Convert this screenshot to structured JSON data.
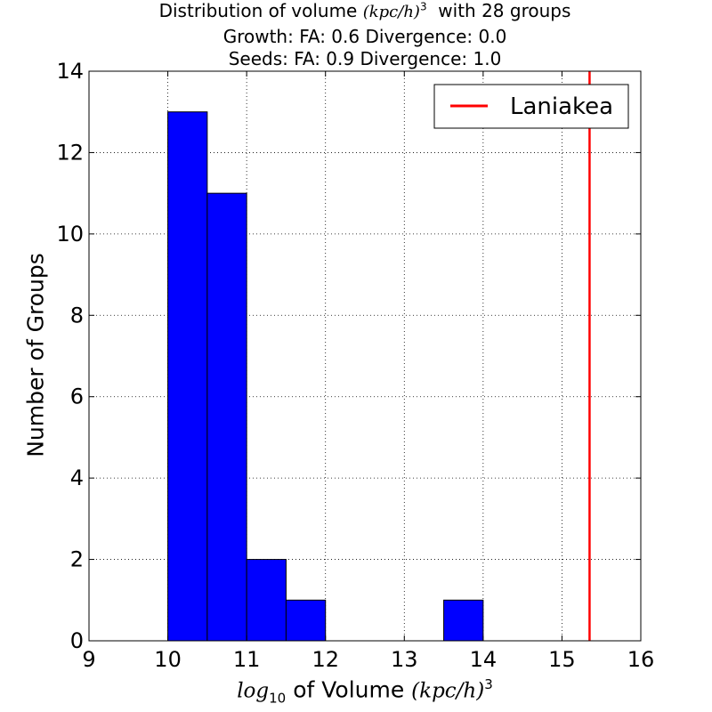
{
  "chart_data": {
    "type": "bar",
    "title": {
      "line1_prefix": "Distribution of volume",
      "line1_math": "(kpc/h)",
      "line1_exp": "3",
      "line1_suffix": "with 28 groups",
      "line2": "Growth: FA: 0.6 Divergence: 0.0",
      "line3": "Seeds: FA: 0.9 Divergence: 1.0"
    },
    "xlabel": {
      "log": "log",
      "log_sub": "10",
      "middle": "of Volume",
      "math": "(kpc/h)",
      "exp": "3"
    },
    "ylabel": "Number of Groups",
    "xlim": [
      9,
      16
    ],
    "ylim": [
      0,
      14
    ],
    "xticks": [
      9,
      10,
      11,
      12,
      13,
      14,
      15,
      16
    ],
    "yticks": [
      0,
      2,
      4,
      6,
      8,
      10,
      12,
      14
    ],
    "bin_edges": [
      10.0,
      10.5,
      11.0,
      11.5,
      12.0,
      12.5,
      13.0,
      13.5,
      14.0
    ],
    "counts": [
      13,
      11,
      2,
      1,
      0,
      0,
      0,
      1
    ],
    "bar_color": "#0000ff",
    "grid": true,
    "vline": {
      "x": 15.35,
      "label": "Laniakea",
      "color": "#ff0000"
    },
    "legend_position": "top-right"
  }
}
